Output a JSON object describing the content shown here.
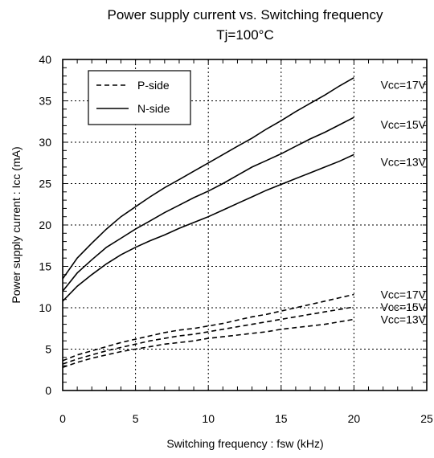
{
  "chart_data": {
    "type": "line",
    "title": "Power supply current vs. Switching frequency",
    "subtitle": "Tj=100°C",
    "xlabel": "Switching frequency : fsw (kHz)",
    "ylabel": "Power supply current : Icc (mA)",
    "xlim": [
      0,
      25
    ],
    "ylim": [
      0,
      40
    ],
    "xticks": [
      0,
      5,
      10,
      15,
      20,
      25
    ],
    "yticks": [
      0,
      5,
      10,
      15,
      20,
      25,
      30,
      35,
      40
    ],
    "grid": true,
    "legend": {
      "placement": "top-left",
      "entries": [
        {
          "label": "P-side",
          "style": "dashed"
        },
        {
          "label": "N-side",
          "style": "solid"
        }
      ]
    },
    "series": [
      {
        "side": "N-side",
        "label": "Vcc=17V",
        "style": "solid",
        "x": [
          0,
          1,
          2,
          3,
          4,
          5,
          6,
          7,
          8,
          9,
          10,
          11,
          12,
          13,
          14,
          15,
          16,
          17,
          18,
          19,
          20
        ],
        "y": [
          13.5,
          16.0,
          17.8,
          19.5,
          21.0,
          22.2,
          23.4,
          24.5,
          25.5,
          26.5,
          27.5,
          28.5,
          29.5,
          30.5,
          31.6,
          32.6,
          33.7,
          34.7,
          35.7,
          36.8,
          37.8
        ]
      },
      {
        "side": "N-side",
        "label": "Vcc=15V",
        "style": "solid",
        "x": [
          0,
          1,
          2,
          3,
          4,
          5,
          6,
          7,
          8,
          9,
          10,
          11,
          12,
          13,
          14,
          15,
          16,
          17,
          18,
          19,
          20
        ],
        "y": [
          12.0,
          14.2,
          15.8,
          17.3,
          18.4,
          19.5,
          20.5,
          21.5,
          22.4,
          23.3,
          24.1,
          25.0,
          26.0,
          27.0,
          27.8,
          28.6,
          29.5,
          30.4,
          31.2,
          32.1,
          33.0
        ]
      },
      {
        "side": "N-side",
        "label": "Vcc=13V",
        "style": "solid",
        "x": [
          0,
          1,
          2,
          3,
          4,
          5,
          6,
          7,
          8,
          9,
          10,
          11,
          12,
          13,
          14,
          15,
          16,
          17,
          18,
          19,
          20
        ],
        "y": [
          10.8,
          12.6,
          14.0,
          15.3,
          16.4,
          17.3,
          18.1,
          18.8,
          19.6,
          20.3,
          21.0,
          21.8,
          22.6,
          23.4,
          24.2,
          24.9,
          25.6,
          26.3,
          27.0,
          27.7,
          28.5
        ]
      },
      {
        "side": "P-side",
        "label": "Vcc=17V",
        "style": "dashed",
        "x": [
          0,
          1,
          2,
          3,
          4,
          5,
          6,
          7,
          8,
          9,
          10,
          11,
          12,
          13,
          14,
          15,
          16,
          17,
          18,
          19,
          20
        ],
        "y": [
          3.6,
          4.3,
          4.8,
          5.3,
          5.8,
          6.2,
          6.6,
          7.0,
          7.3,
          7.5,
          7.8,
          8.1,
          8.5,
          8.9,
          9.2,
          9.6,
          10.0,
          10.4,
          10.8,
          11.2,
          11.6
        ]
      },
      {
        "side": "P-side",
        "label": "Vcc=15V",
        "style": "dashed",
        "x": [
          0,
          1,
          2,
          3,
          4,
          5,
          6,
          7,
          8,
          9,
          10,
          11,
          12,
          13,
          14,
          15,
          16,
          17,
          18,
          19,
          20
        ],
        "y": [
          3.2,
          3.8,
          4.3,
          4.8,
          5.2,
          5.6,
          6.0,
          6.3,
          6.6,
          6.8,
          7.1,
          7.4,
          7.7,
          8.0,
          8.3,
          8.6,
          8.9,
          9.2,
          9.5,
          9.8,
          10.1
        ]
      },
      {
        "side": "P-side",
        "label": "Vcc=13V",
        "style": "dashed",
        "x": [
          0,
          1,
          2,
          3,
          4,
          5,
          6,
          7,
          8,
          9,
          10,
          11,
          12,
          13,
          14,
          15,
          16,
          17,
          18,
          19,
          20
        ],
        "y": [
          2.8,
          3.4,
          3.9,
          4.3,
          4.7,
          5.0,
          5.3,
          5.6,
          5.8,
          6.0,
          6.3,
          6.5,
          6.7,
          6.9,
          7.1,
          7.4,
          7.6,
          7.8,
          8.0,
          8.3,
          8.6
        ]
      }
    ]
  }
}
